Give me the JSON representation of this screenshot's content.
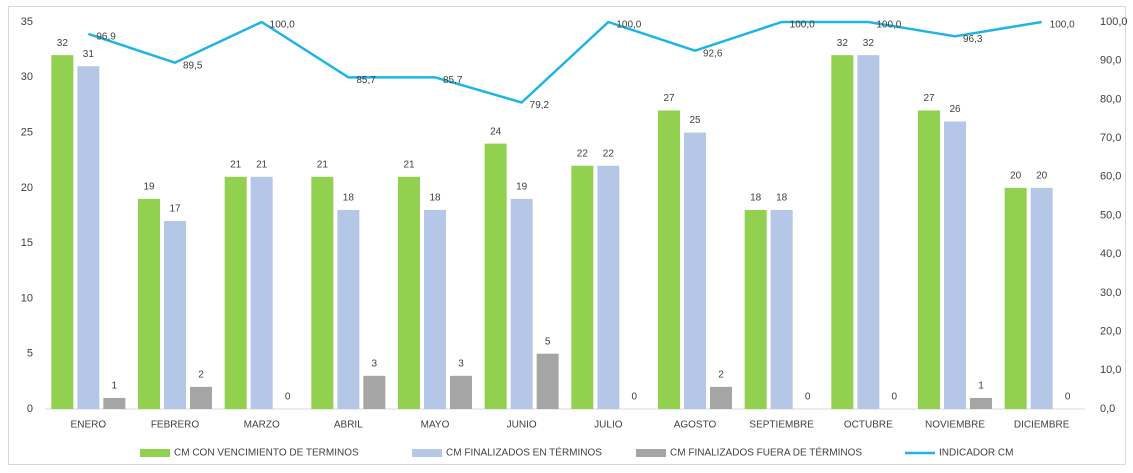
{
  "chart_data": {
    "type": "bar",
    "categories": [
      "ENERO",
      "FEBRERO",
      "MARZO",
      "ABRIL",
      "MAYO",
      "JUNIO",
      "JULIO",
      "AGOSTO",
      "SEPTIEMBRE",
      "OCTUBRE",
      "NOVIEMBRE",
      "DICIEMBRE"
    ],
    "series": [
      {
        "name": "CM CON VENCIMIENTO DE TERMINOS",
        "color": "#92d050",
        "values": [
          32,
          19,
          21,
          21,
          21,
          24,
          22,
          27,
          18,
          32,
          27,
          20
        ]
      },
      {
        "name": "CM FINALIZADOS EN TÉRMINOS",
        "color": "#b4c7e7",
        "values": [
          31,
          17,
          21,
          18,
          18,
          19,
          22,
          25,
          18,
          32,
          26,
          20
        ]
      },
      {
        "name": "CM FINALIZADOS FUERA DE TÉRMINOS",
        "color": "#a5a5a5",
        "values": [
          1,
          2,
          0,
          3,
          3,
          5,
          0,
          2,
          0,
          0,
          1,
          0
        ]
      },
      {
        "name": "INDICADOR CM",
        "color": "#1fb4e6",
        "type": "line",
        "axis": "y2",
        "values": [
          96.9,
          89.5,
          100,
          85.7,
          85.7,
          79.2,
          100,
          92.6,
          100,
          100,
          96.3,
          100
        ],
        "value_labels": [
          "96,9",
          "89,5",
          "100,0",
          "85,7",
          "85,7",
          "79,2",
          "100,0",
          "92,6",
          "100,0",
          "100,0",
          "96,3",
          "100,0"
        ]
      }
    ],
    "ylim": [
      0,
      35
    ],
    "yticks": [
      0,
      5,
      10,
      15,
      20,
      25,
      30,
      35
    ],
    "y2lim": [
      0,
      100
    ],
    "y2ticks": [
      {
        "value": 0,
        "label": "0,0"
      },
      {
        "value": 10,
        "label": "10,0"
      },
      {
        "value": 20,
        "label": "20,0"
      },
      {
        "value": 30,
        "label": "30,0"
      },
      {
        "value": 40,
        "label": "40,0"
      },
      {
        "value": 50,
        "label": "50,0"
      },
      {
        "value": 60,
        "label": "60,0"
      },
      {
        "value": 70,
        "label": "70,0"
      },
      {
        "value": 80,
        "label": "80,0"
      },
      {
        "value": 90,
        "label": "90,0"
      },
      {
        "value": 100,
        "label": "100,0"
      }
    ],
    "grid": false,
    "legend": "bottom"
  }
}
